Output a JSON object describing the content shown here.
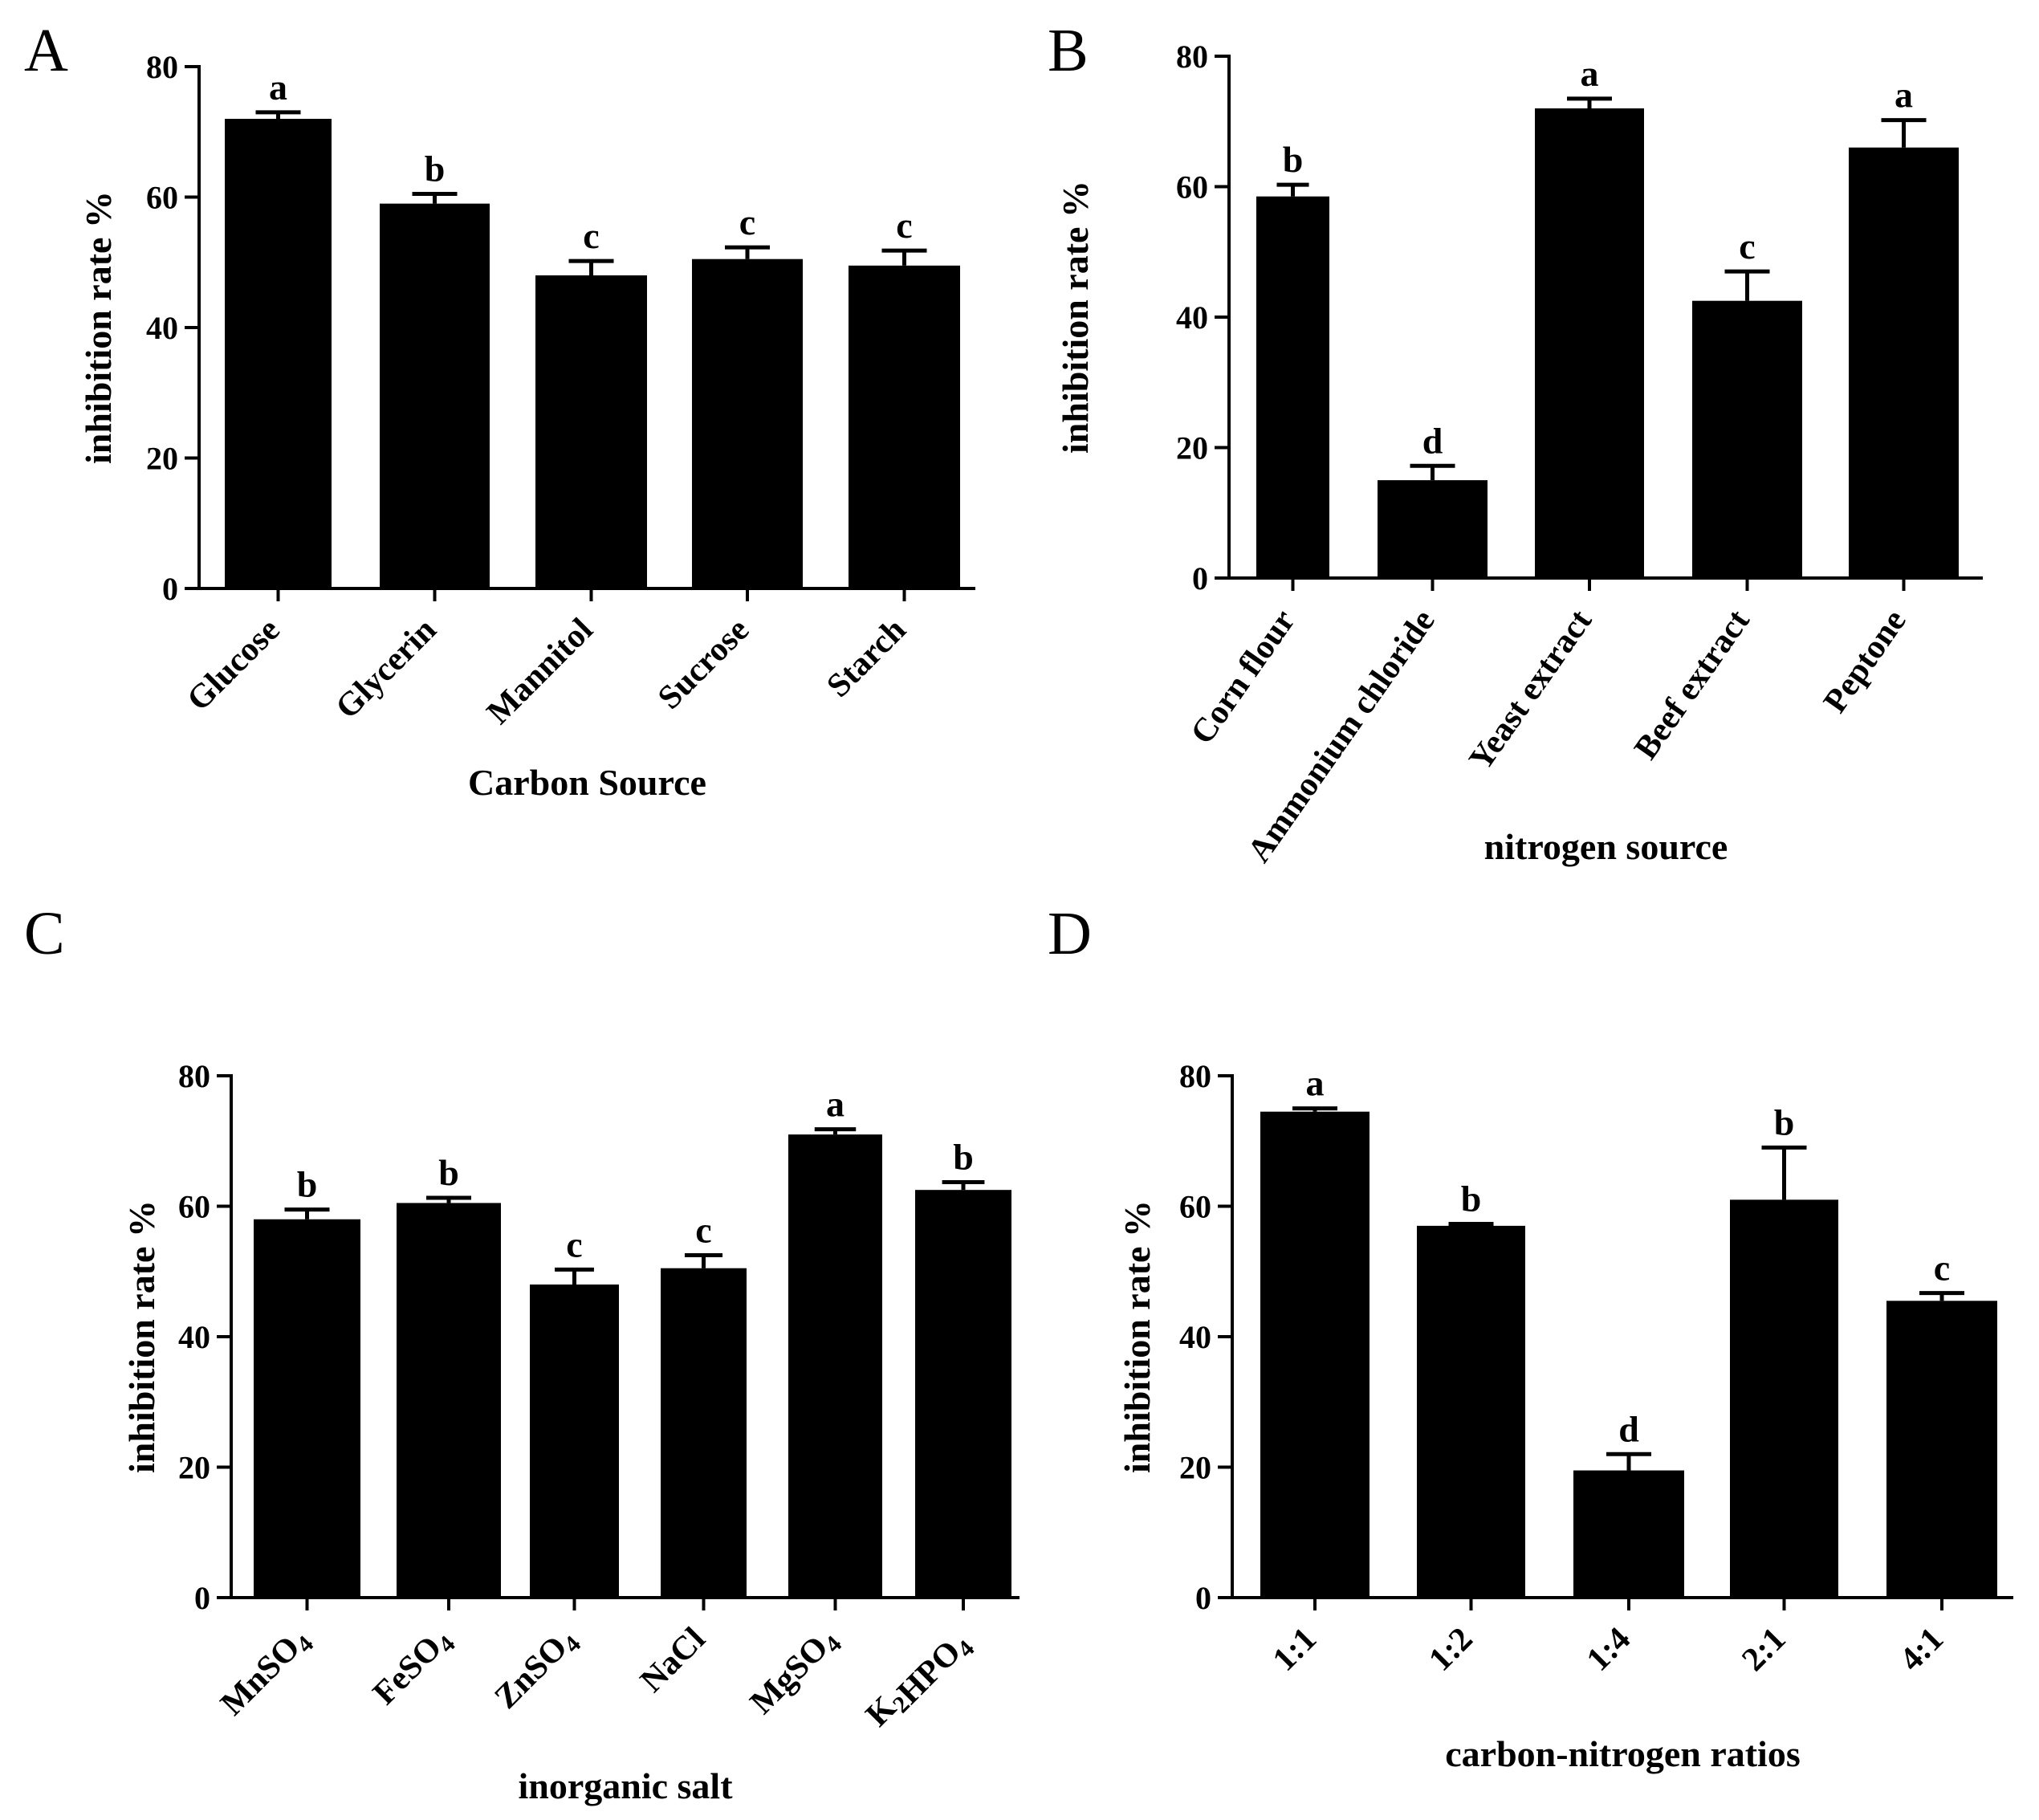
{
  "chart_data": [
    {
      "panel": "A",
      "type": "bar",
      "categories": [
        "Glucose",
        "Glycerin",
        "Mannitol",
        "Sucrose",
        "Starch"
      ],
      "values": [
        72,
        59,
        48,
        50.5,
        49.5
      ],
      "errors": [
        1,
        1.5,
        2.2,
        1.8,
        2.3
      ],
      "letters": [
        "a",
        "b",
        "c",
        "c",
        "c"
      ],
      "ylabel": "inhibition rate %",
      "xlabel": "Carbon Source",
      "ylim": [
        0,
        80
      ],
      "yticks": [
        0,
        20,
        40,
        60,
        80
      ]
    },
    {
      "panel": "B",
      "type": "bar",
      "categories": [
        "Corn flour",
        "Ammonium chloride",
        "Yeast extract",
        "Beef extract",
        "Peptone"
      ],
      "values": [
        58.5,
        15,
        72,
        42.5,
        66
      ],
      "errors": [
        1.8,
        2.2,
        1.5,
        4.5,
        4.2
      ],
      "letters": [
        "b",
        "d",
        "a",
        "c",
        "a"
      ],
      "ylabel": "inhibition rate %",
      "xlabel": "nitrogen source",
      "ylim": [
        0,
        80
      ],
      "yticks": [
        0,
        20,
        40,
        60,
        80
      ]
    },
    {
      "panel": "C",
      "type": "bar",
      "categories": [
        "MnSO4",
        "FeSO4",
        "ZnSO4",
        "NaCl",
        "MgSO4",
        "K2HPO4"
      ],
      "values": [
        58,
        60.5,
        48,
        50.5,
        71,
        62.5
      ],
      "errors": [
        1.5,
        0.8,
        2.3,
        2.0,
        0.8,
        1.2
      ],
      "letters": [
        "b",
        "b",
        "c",
        "c",
        "a",
        "b"
      ],
      "ylabel": "inhibition rate %",
      "xlabel": "inorganic salt",
      "ylim": [
        0,
        80
      ],
      "yticks": [
        0,
        20,
        40,
        60,
        80
      ]
    },
    {
      "panel": "D",
      "type": "bar",
      "categories": [
        "1:1",
        "1:2",
        "1:4",
        "2:1",
        "4:1"
      ],
      "values": [
        74.5,
        57,
        19.5,
        61,
        45.5
      ],
      "errors": [
        0.5,
        0.3,
        2.5,
        8,
        1.2
      ],
      "letters": [
        "a",
        "b",
        "d",
        "b",
        "c"
      ],
      "ylabel": "inhibition rate %",
      "xlabel": "carbon-nitrogen ratios",
      "ylim": [
        0,
        80
      ],
      "yticks": [
        0,
        20,
        40,
        60,
        80
      ]
    }
  ]
}
